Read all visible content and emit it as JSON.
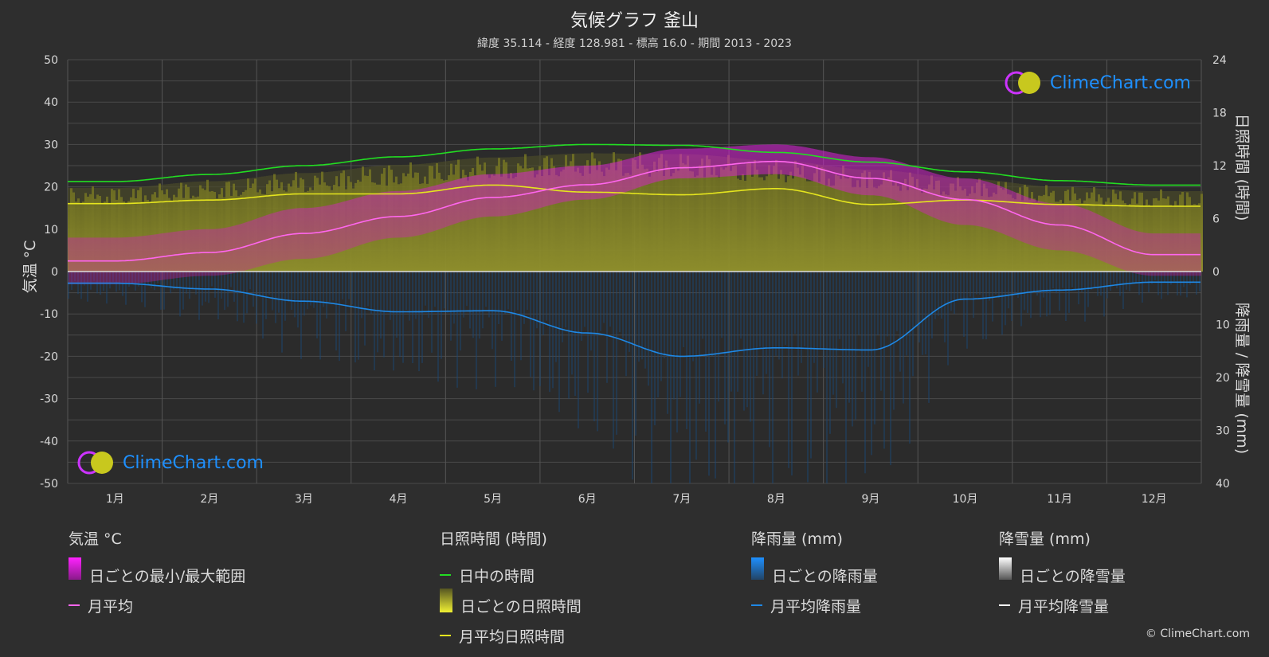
{
  "header": {
    "title": "気候グラフ 釜山",
    "subtitle": "緯度 35.114 - 経度 128.981 - 標高 16.0 - 期間 2013 - 2023"
  },
  "axes": {
    "left_label": "気温 °C",
    "right_top_label": "日照時間 (時間)",
    "right_bottom_label": "降雨量 / 降雪量 (mm)",
    "left_ticks": [
      "50",
      "40",
      "30",
      "20",
      "10",
      "0",
      "-10",
      "-20",
      "-30",
      "-40",
      "-50"
    ],
    "right_top_ticks": [
      "24",
      "18",
      "12",
      "6",
      "0"
    ],
    "right_bottom_ticks": [
      "10",
      "20",
      "30",
      "40"
    ]
  },
  "chart_data": {
    "type": "area",
    "categories": [
      "1月",
      "2月",
      "3月",
      "4月",
      "5月",
      "6月",
      "7月",
      "8月",
      "9月",
      "10月",
      "11月",
      "12月"
    ],
    "temperature_ylim": [
      -50,
      50
    ],
    "sunshine_ylim": [
      0,
      24
    ],
    "precip_ylim": [
      0,
      40
    ],
    "series": [
      {
        "name": "日中の時間",
        "axis": "sunshine",
        "values": [
          10.2,
          11.0,
          12.0,
          13.0,
          13.9,
          14.4,
          14.3,
          13.5,
          12.4,
          11.3,
          10.3,
          9.8
        ]
      },
      {
        "name": "月平均日照時間",
        "axis": "sunshine",
        "values": [
          7.7,
          8.1,
          8.8,
          8.8,
          9.8,
          9.0,
          8.7,
          9.4,
          7.6,
          8.1,
          7.6,
          7.4
        ]
      },
      {
        "name": "月平均",
        "axis": "temperature",
        "values": [
          2.5,
          4.5,
          9.0,
          13.0,
          17.5,
          20.5,
          24.5,
          26.0,
          22.0,
          17.0,
          11.0,
          4.0
        ]
      },
      {
        "name": "月平均降雨量",
        "axis": "precip",
        "values": [
          2.2,
          3.3,
          5.6,
          7.6,
          7.4,
          11.6,
          16.0,
          14.4,
          14.8,
          5.2,
          3.5,
          2.0
        ]
      }
    ],
    "daily_minmax": {
      "name": "日ごとの最小/最大範囲",
      "min": [
        -3,
        -1,
        3,
        8,
        13,
        17,
        22,
        23,
        18,
        11,
        5,
        -1
      ],
      "max": [
        8,
        10,
        15,
        19,
        23,
        25,
        29,
        30,
        27,
        22,
        16,
        9
      ]
    },
    "grid": true
  },
  "legend": {
    "temperature": {
      "heading": "気温 °C",
      "items": [
        "日ごとの最小/最大範囲",
        "月平均"
      ]
    },
    "sunshine": {
      "heading": "日照時間 (時間)",
      "items": [
        "日中の時間",
        "日ごとの日照時間",
        "月平均日照時間"
      ]
    },
    "rain": {
      "heading": "降雨量 (mm)",
      "items": [
        "日ごとの降雨量",
        "月平均降雨量"
      ]
    },
    "snow": {
      "heading": "降雪量 (mm)",
      "items": [
        "日ごとの降雪量",
        "月平均降雪量"
      ]
    }
  },
  "brand": {
    "logo_text": "ClimeChart.com",
    "copyright": "© ClimeChart.com"
  },
  "colors": {
    "daylight": "#22dd22",
    "sunshine_avg": "#e5e51e",
    "temp_avg": "#ff66ee",
    "temp_range": "#e020e0",
    "rain_avg": "#1e88e5",
    "rain_daily": "#1565a8",
    "snow": "#ffffff",
    "sunshine_fill": "#8c8c28"
  }
}
